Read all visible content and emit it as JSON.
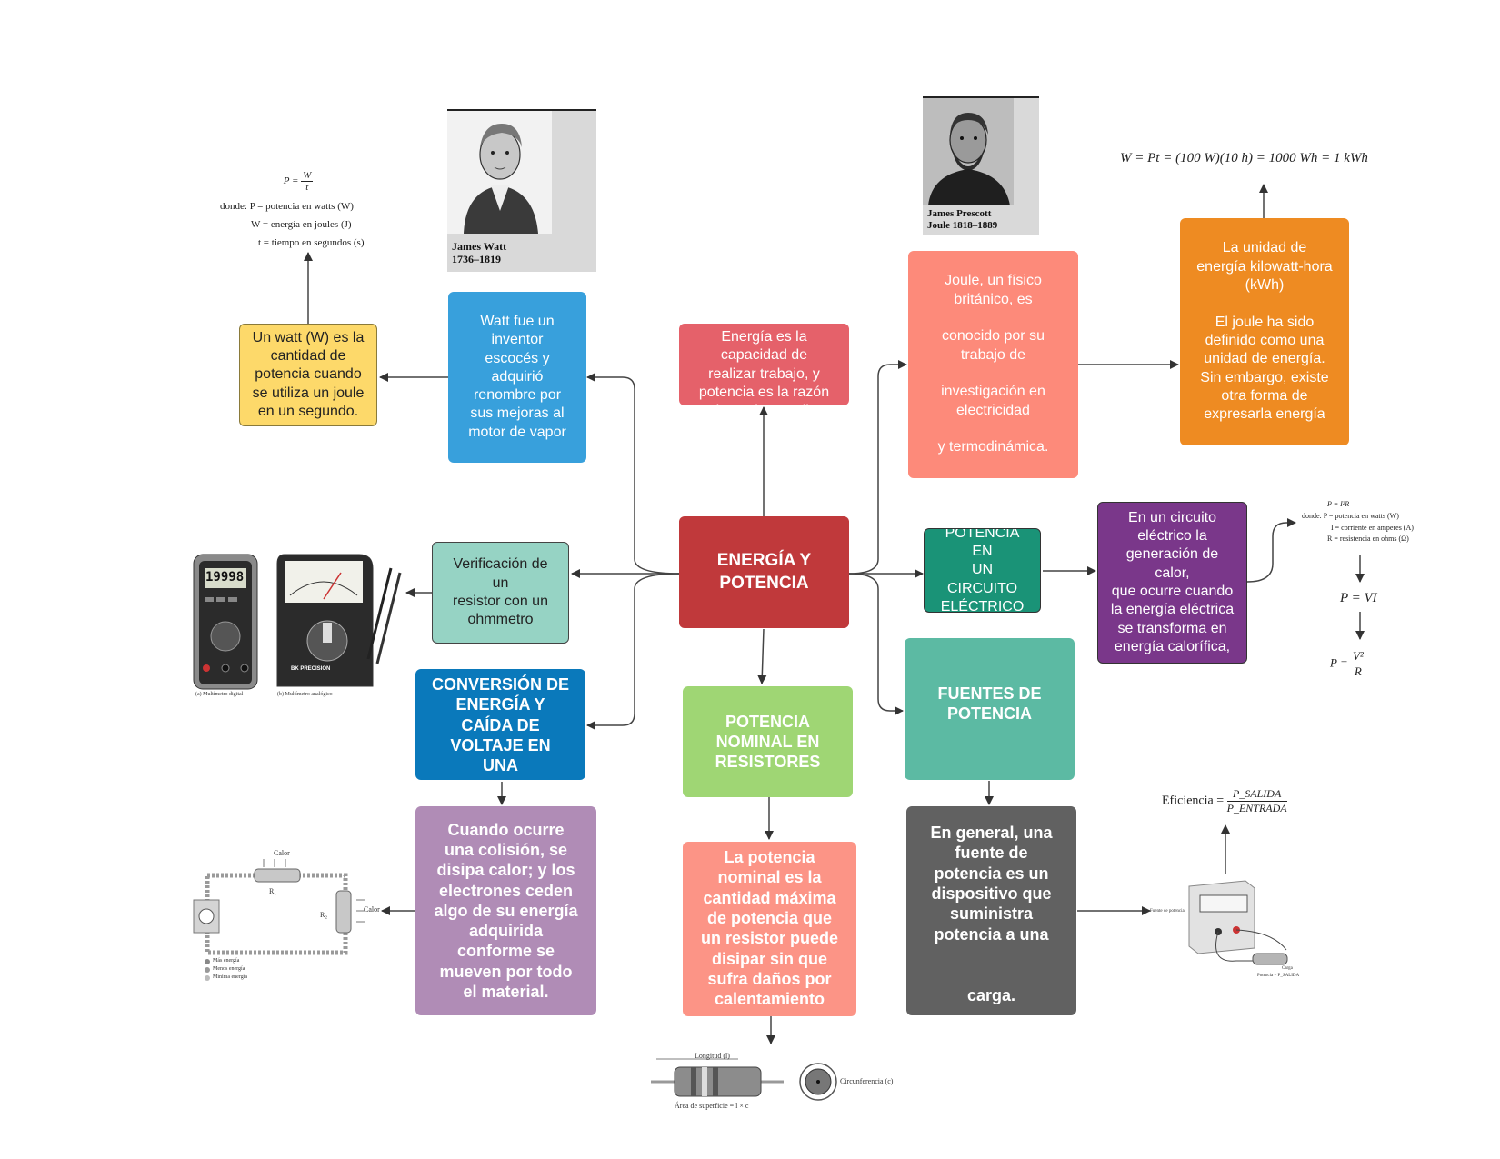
{
  "colors": {
    "center": "#c0393b",
    "energy": "#e5616a",
    "watt": "#38a0dc",
    "watt_unit": "#fdd96a",
    "verify": "#96d3c4",
    "conversion": "#0a79bb",
    "collision": "#b08cb6",
    "nominal": "#9fd674",
    "nominal_desc": "#fc9486",
    "joule": "#fd8a7a",
    "kwh": "#ee8b22",
    "circuit": "#1a9377",
    "circuit_desc": "#7a378a",
    "sources": "#5cbaa3",
    "sources_desc": "#616161"
  },
  "nodes": {
    "center": "ENERGÍA Y\nPOTENCIA",
    "energy": "Energía es la\ncapacidad de\nrealizar trabajo, y\npotencia es la razón\na la cual se realiza",
    "watt_bio": "Watt fue un\ninventor\nescocés y\nadquirió\nrenombre por\nsus mejoras al\nmotor de vapor",
    "watt_unit": "Un watt (W) es la\ncantidad de\npotencia cuando\nse utiliza un joule\nen un segundo.",
    "verify": "Verificación de un\nresistor con un\nohmmetro",
    "conversion": "CONVERSIÓN DE\nENERGÍA Y\nCAÍDA DE\nVOLTAJE EN\nUNA",
    "collision": "Cuando ocurre\nuna colisión, se\ndisipa calor; y los\nelectrones ceden\nalgo de su energía\nadquirida\nconforme se\nmueven por todo\nel material.",
    "nominal": "POTENCIA\nNOMINAL EN\nRESISTORES",
    "nominal_desc": "La potencia\nnominal es la\ncantidad máxima\nde potencia que\nun resistor puede\ndisipar sin que\nsufra daños por\ncalentamiento",
    "joule": "Joule, un físico\nbritánico, es\n\nconocido por su\ntrabajo de\n\ninvestigación en\nelectricidad\n\ny termodinámica.",
    "kwh": "La unidad de\nenergía kilowatt-hora\n(kWh)\n\nEl joule ha sido\ndefinido como una\nunidad de energía.\nSin embargo, existe\notra forma de\nexpresarla energía",
    "circuit": "POTENCIA EN\nUN CIRCUITO\nELÉCTRICO",
    "circuit_desc": "En un circuito\neléctrico la\ngeneración de calor,\nque ocurre cuando\nla energía eléctrica\nse transforma en\nenergía calorífica,",
    "sources": "FUENTES DE\nPOTENCIA",
    "sources_desc": "En general, una\nfuente de\npotencia es un\ndispositivo que\nsuministra\npotencia a una\n\n\ncarga."
  },
  "formulas": {
    "watt_def": {
      "lhs": "P =",
      "num": "W",
      "den": "t",
      "lines": [
        "donde: P = potencia en watts (W)",
        "W = energía en joules (J)",
        "t = tiempo en segundos (s)"
      ]
    },
    "kwh_eq": "W = Pt = (100 W)(10 h) = 1000 Wh = 1 kWh",
    "p_i2r": {
      "top": "P = I²R",
      "lines": [
        "donde: P = potencia en watts (W)",
        "I = corriente en amperes (A)",
        "R = resistencia en ohms (Ω)"
      ]
    },
    "p_vi": "P = VI",
    "p_v2r": {
      "lhs": "P =",
      "num": "V²",
      "den": "R"
    },
    "efficiency": {
      "lhs": "Eficiencia =",
      "num": "P_SALIDA",
      "den": "P_ENTRADA"
    }
  },
  "portraits": {
    "watt": "James Watt\n1736–1819",
    "joule": "James Prescott\nJoule 1818–1889"
  },
  "illustrations": {
    "meter_display": "19998",
    "meter_caption_a": "(a) Multímetro digital",
    "meter_caption_b": "(b) Multímetro analógico",
    "meter_brand": "BK PRECISION",
    "circuit_heat_top": "Calor",
    "circuit_heat_side": "Calor",
    "circuit_r1": "R₁",
    "circuit_r2": "R₂",
    "legend": [
      "Más energía",
      "Menos energía",
      "Mínima energía"
    ],
    "resistor_length": "Longitud (l)",
    "resistor_area": "Área de superficie = l × c",
    "circumference": "Circunferencia (c)",
    "power_source_label": "Fuente de potencia",
    "load_label": "Carga",
    "load_power": "Potencia = P_SALIDA"
  }
}
